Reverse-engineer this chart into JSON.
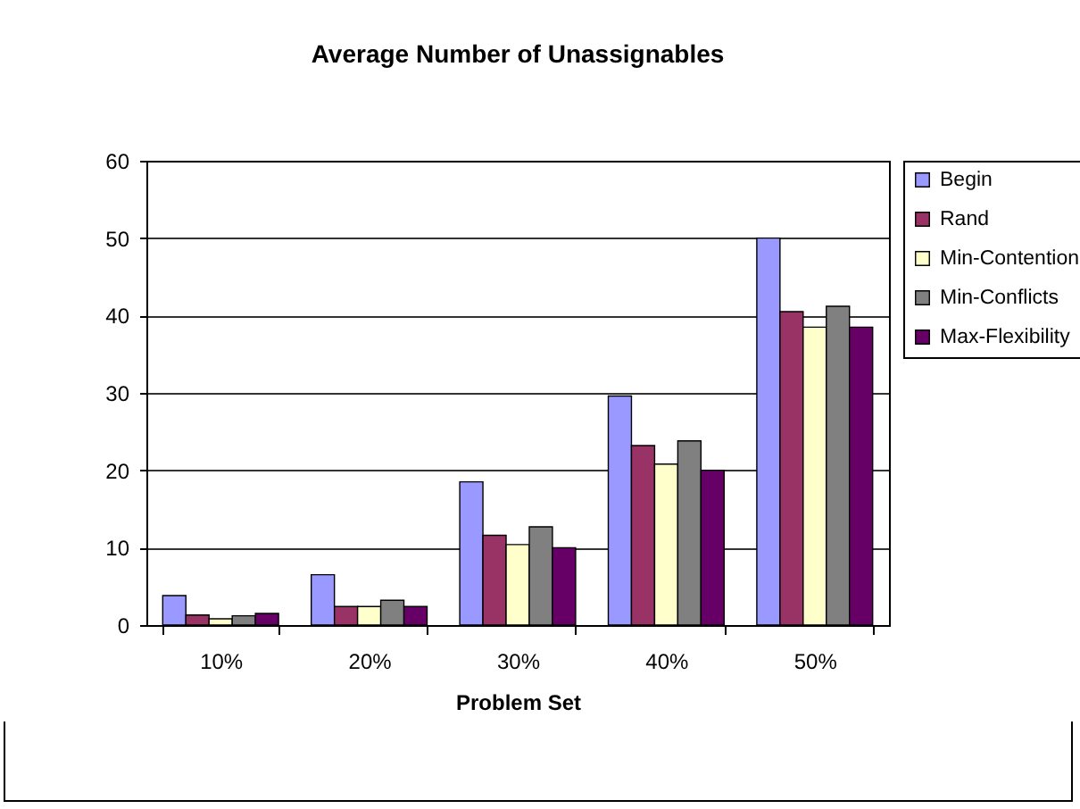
{
  "chart_data": {
    "type": "bar",
    "title": "Average Number of Unassignables",
    "xlabel": "Problem Set",
    "categories": [
      "10%",
      "20%",
      "30%",
      "40%",
      "50%"
    ],
    "series": [
      {
        "name": "Begin",
        "color": "#9999ff",
        "values": [
          3.8,
          6.5,
          18.5,
          29.6,
          50
        ]
      },
      {
        "name": "Rand",
        "color": "#993366",
        "values": [
          1.3,
          2.4,
          11.6,
          23.2,
          40.5
        ]
      },
      {
        "name": "Min-Contention",
        "color": "#ffffcc",
        "values": [
          0.8,
          2.4,
          10.4,
          20.8,
          38.5
        ]
      },
      {
        "name": "Min-Conflicts",
        "color": "#808080",
        "values": [
          1.2,
          3.2,
          12.7,
          23.8,
          41.2
        ]
      },
      {
        "name": "Max-Flexibility",
        "color": "#660066",
        "values": [
          1.5,
          2.4,
          10,
          20,
          38.5
        ]
      }
    ],
    "ylim": [
      0,
      60
    ],
    "yticks": [
      0,
      10,
      20,
      30,
      40,
      50,
      60
    ],
    "grid": "y",
    "legend": "right"
  }
}
